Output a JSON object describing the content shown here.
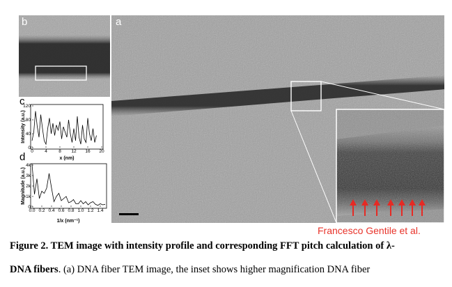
{
  "figure": {
    "panel_labels": {
      "a": "a",
      "b": "b",
      "c": "c",
      "d": "d"
    },
    "credit": "Francesco Gentile et al.",
    "caption": {
      "line1_bold": "Figure 2. TEM image with intensity profile and corresponding FFT pitch calculation of λ-",
      "line2_bold": "DNA fibers",
      "line2_rest": ". (a) DNA fiber TEM image, the inset shows higher magnification DNA fiber"
    }
  },
  "chart_data": [
    {
      "type": "line",
      "panel": "c",
      "xlabel": "x (nm)",
      "ylabel": "Intensity (a.u.)",
      "xlim": [
        0,
        20
      ],
      "ylim": [
        0,
        120
      ],
      "xticks": [
        "0",
        "4",
        "8",
        "12",
        "16",
        "20"
      ],
      "yticks": [
        "0",
        "40",
        "80",
        "120"
      ],
      "x": [
        0,
        0.5,
        1,
        1.5,
        2,
        2.5,
        3,
        3.5,
        4,
        4.5,
        5,
        5.5,
        6,
        6.5,
        7,
        7.5,
        8,
        8.5,
        9,
        9.5,
        10,
        10.5,
        11,
        11.5,
        12,
        12.5,
        13,
        13.5,
        14,
        14.5,
        15,
        15.5,
        16,
        16.5,
        17,
        17.5,
        18,
        18.5
      ],
      "y": [
        20,
        45,
        105,
        60,
        30,
        95,
        55,
        20,
        10,
        55,
        85,
        40,
        70,
        35,
        65,
        50,
        75,
        25,
        60,
        45,
        30,
        80,
        40,
        15,
        55,
        20,
        90,
        30,
        10,
        65,
        25,
        15,
        85,
        40,
        20,
        55,
        15,
        35
      ]
    },
    {
      "type": "line",
      "panel": "d",
      "xlabel": "1/x (nm⁻¹)",
      "ylabel": "Magnitude (a.u.)",
      "xlim": [
        0,
        1.5
      ],
      "ylim": [
        0,
        4000
      ],
      "xticks": [
        "0.0",
        "0.2",
        "0.4",
        "0.6",
        "0.8",
        "1.0",
        "1.2",
        "1.4"
      ],
      "yticks": [
        "0",
        "1k",
        "2k",
        "3k",
        "4k"
      ],
      "x": [
        0,
        0.05,
        0.1,
        0.15,
        0.2,
        0.25,
        0.3,
        0.35,
        0.4,
        0.45,
        0.5,
        0.55,
        0.6,
        0.65,
        0.7,
        0.75,
        0.8,
        0.85,
        0.9,
        0.95,
        1.0,
        1.05,
        1.1,
        1.15,
        1.2,
        1.25,
        1.3,
        1.35,
        1.4,
        1.45,
        1.5
      ],
      "y": [
        4100,
        1200,
        2700,
        800,
        1500,
        1300,
        1800,
        3200,
        1800,
        500,
        1000,
        1300,
        600,
        800,
        1000,
        400,
        500,
        700,
        300,
        300,
        600,
        300,
        500,
        200,
        400,
        500,
        250,
        150,
        300,
        200,
        250
      ]
    }
  ]
}
